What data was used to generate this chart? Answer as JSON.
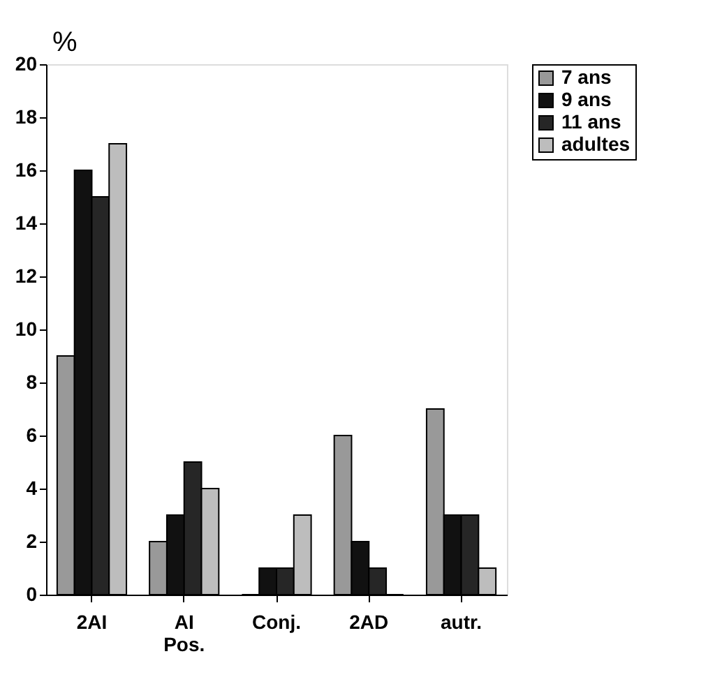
{
  "chart_data": {
    "type": "bar",
    "ylabel": "%",
    "categories": [
      "2AI",
      "AI\nPos.",
      "Conj.",
      "2AD",
      "autr."
    ],
    "series": [
      {
        "name": "7 ans",
        "color": "#999999",
        "values": [
          9,
          2,
          0,
          6,
          7
        ]
      },
      {
        "name": "9 ans",
        "color": "#111111",
        "values": [
          16,
          3,
          1,
          2,
          3
        ]
      },
      {
        "name": "11 ans",
        "color": "#262626",
        "values": [
          15,
          5,
          1,
          1,
          3
        ]
      },
      {
        "name": "adultes",
        "color": "#bdbdbd",
        "values": [
          17,
          4,
          3,
          0,
          1
        ]
      }
    ],
    "ylim": [
      0,
      20
    ],
    "yticks": [
      0,
      2,
      4,
      6,
      8,
      10,
      12,
      14,
      16,
      18,
      20
    ],
    "grid": false,
    "legend": "right"
  }
}
